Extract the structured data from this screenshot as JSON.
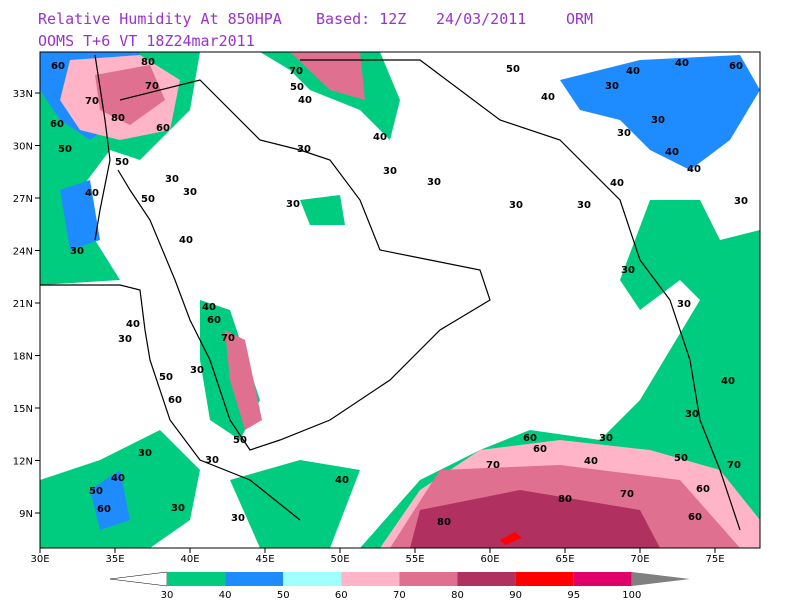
{
  "header": {
    "title": "Relative Humidity At 850HPA",
    "based": "Based: 12Z",
    "date": "24/03/2011",
    "center": "ORM",
    "subtitle": "OOMS  T+6 VT 18Z24mar2011"
  },
  "map": {
    "lon_labels": [
      "30E",
      "35E",
      "40E",
      "45E",
      "50E",
      "55E",
      "60E",
      "65E",
      "70E",
      "75E"
    ],
    "lat_labels": [
      "33N",
      "30N",
      "27N",
      "24N",
      "21N",
      "18N",
      "15N",
      "12N",
      "9N"
    ],
    "contour_labels": [
      "60",
      "80",
      "70",
      "70",
      "80",
      "60",
      "60",
      "50",
      "50",
      "40",
      "50",
      "30",
      "30",
      "40",
      "30",
      "30",
      "70",
      "50",
      "40",
      "40",
      "30",
      "30",
      "30",
      "50",
      "40",
      "30",
      "40",
      "40",
      "60",
      "30",
      "30",
      "40",
      "40",
      "40",
      "30",
      "30",
      "30",
      "30",
      "30",
      "40",
      "30",
      "30",
      "60",
      "60",
      "40",
      "50",
      "70",
      "70",
      "80",
      "70",
      "60",
      "60",
      "80",
      "40",
      "30",
      "40",
      "60",
      "70",
      "50",
      "30",
      "60",
      "50",
      "30",
      "40",
      "50",
      "60",
      "30",
      "30",
      "40",
      "30"
    ]
  },
  "colorbar": {
    "labels": [
      "30",
      "40",
      "50",
      "60",
      "70",
      "80",
      "90",
      "95",
      "100"
    ],
    "colors": [
      "#00cc80",
      "#1e8cff",
      "#a0ffff",
      "#ffb4c8",
      "#e07090",
      "#b03060",
      "#ff0000",
      "#e0006a"
    ]
  }
}
